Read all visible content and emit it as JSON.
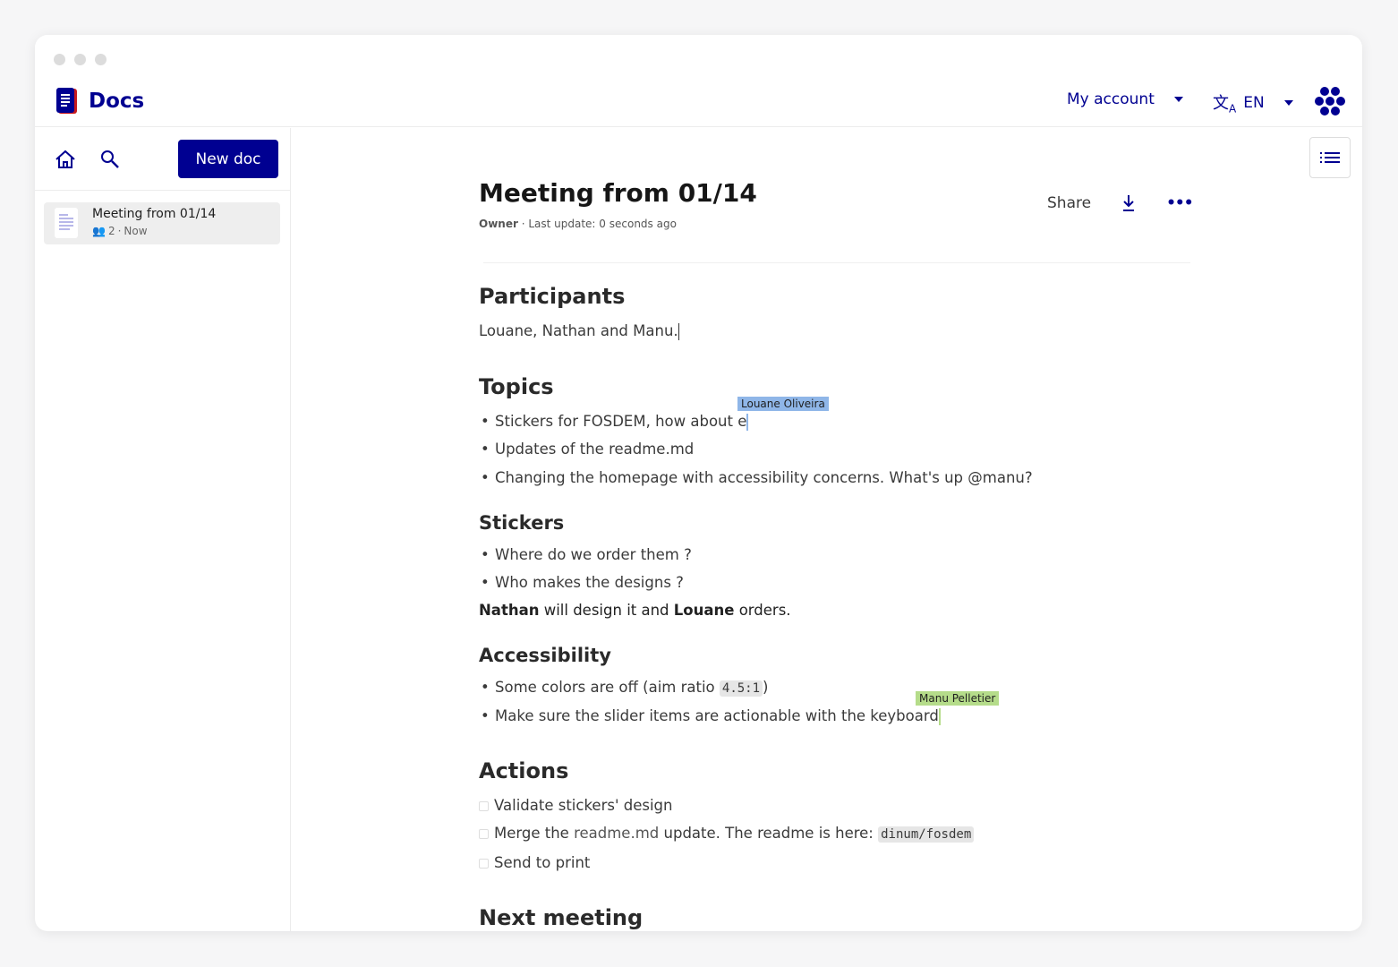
{
  "app": {
    "name": "Docs",
    "brand_color": "#000091"
  },
  "header": {
    "account_label": "My account",
    "language_label": "EN"
  },
  "sidebar": {
    "new_doc_label": "New doc",
    "docs": [
      {
        "title": "Meeting from 01/14",
        "participants": "2",
        "time": "Now"
      }
    ]
  },
  "document": {
    "title": "Meeting from 01/14",
    "role": "Owner",
    "last_update": "Last update: 0 seconds ago",
    "share_label": "Share",
    "participants_heading": "Participants",
    "participants_text": "Louane, Nathan and Manu.",
    "topics_heading": "Topics",
    "topics": [
      "Stickers for FOSDEM, how about e",
      "Updates of the readme.md",
      "Changing the homepage with accessibility concerns. What's up @manu?"
    ],
    "cursor_louane": {
      "name": "Louane Oliveira",
      "color": "#8fb6e8"
    },
    "stickers_heading": "Stickers",
    "stickers": [
      "Where do we order them ?",
      "Who makes the designs ?"
    ],
    "stickers_note": {
      "name1": "Nathan",
      "mid": " will design it and ",
      "name2": "Louane",
      "end": " orders."
    },
    "accessibility_heading": "Accessibility",
    "accessibility": {
      "item1_text": "Some colors are off (aim ratio ",
      "item1_code": "4.5:1",
      "item1_end": ")",
      "item2": "Make sure the slider items are actionable with the keyboard"
    },
    "cursor_manu": {
      "name": "Manu Pelletier",
      "color": "#b5dc8a"
    },
    "actions_heading": "Actions",
    "actions": {
      "item1": "Validate stickers' design",
      "item2_pre": "Merge the ",
      "item2_link": "readme.md",
      "item2_mid": " update. The readme is here: ",
      "item2_code": "dinum/fosdem",
      "item3": "Send to print"
    },
    "next_heading": "Next meeting"
  }
}
